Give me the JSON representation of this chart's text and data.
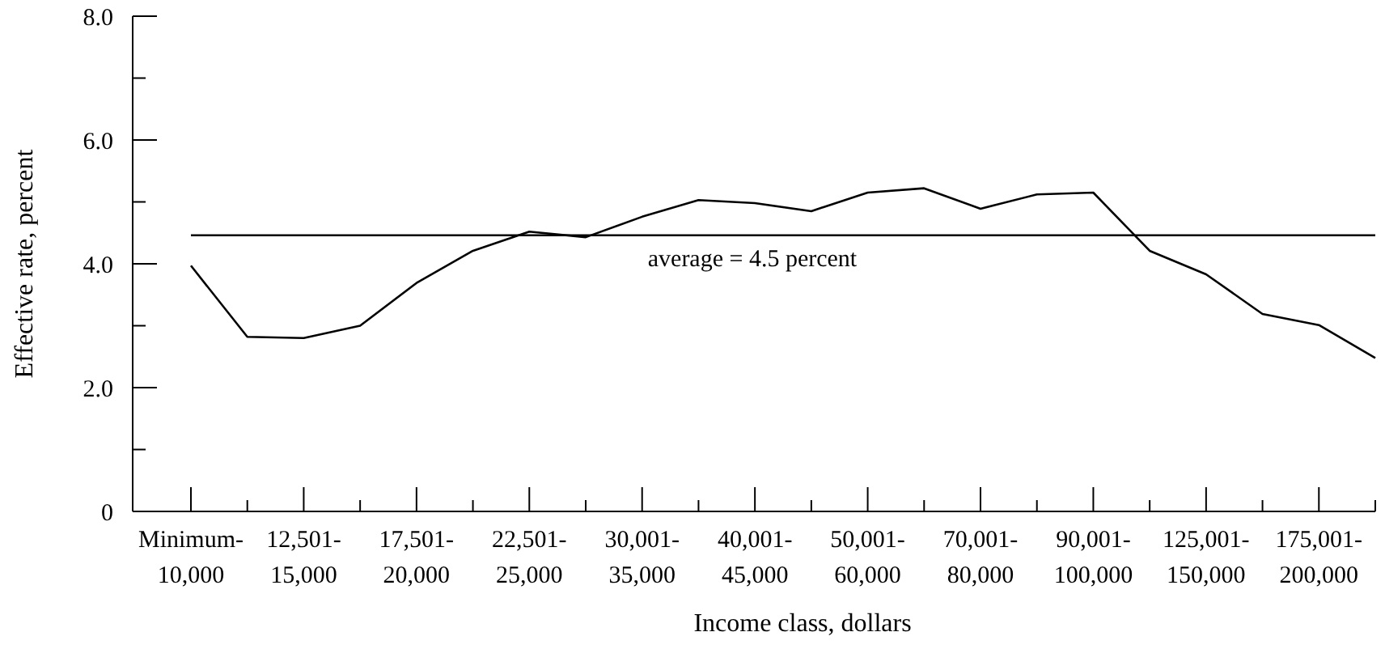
{
  "chart_data": {
    "type": "line",
    "xlabel": "Income class, dollars",
    "ylabel": "Effective rate, percent",
    "categories": [
      "Minimum-\n10,000",
      null,
      "12,501-\n15,000",
      null,
      "17,501-\n20,000",
      null,
      "22,501-\n25,000",
      null,
      "30,001-\n35,000",
      null,
      "40,001-\n45,000",
      null,
      "50,001-\n60,000",
      null,
      "70,001-\n80,000",
      null,
      "90,001-\n100,000",
      null,
      "125,001-\n150,000",
      null,
      "175,001-\n200,000",
      null
    ],
    "series": [
      {
        "color": "#000000",
        "values": [
          3.97,
          2.82,
          2.8,
          3.0,
          3.69,
          4.21,
          4.52,
          4.43,
          4.76,
          5.03,
          4.98,
          4.85,
          5.15,
          5.22,
          4.89,
          5.12,
          5.15,
          4.21,
          3.83,
          3.19,
          3.01,
          2.48
        ]
      }
    ],
    "ylim": [
      0,
      8
    ],
    "yticks": [
      0,
      {
        "value": 1,
        "label": null
      },
      {
        "value": 2,
        "label": "2.0"
      },
      {
        "value": 3,
        "label": null
      },
      {
        "value": 4,
        "label": "4.0"
      },
      {
        "value": 5,
        "label": null
      },
      {
        "value": 6,
        "label": "6.0"
      },
      {
        "value": 7,
        "label": null
      },
      {
        "value": 8,
        "label": "8.0"
      }
    ],
    "ref_lines": [
      {
        "axis": "y",
        "value": 4.46,
        "label": "average = 4.5 percent",
        "color": "#000000"
      }
    ],
    "grid": false,
    "marker": "none",
    "line_style": "solid"
  }
}
